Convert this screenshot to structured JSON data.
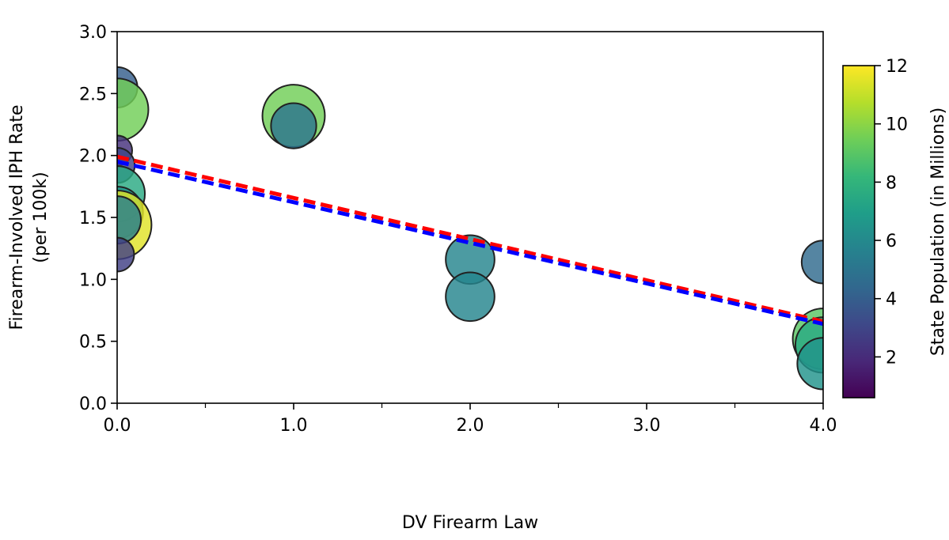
{
  "chart_data": {
    "type": "scatter",
    "xlabel": "DV Firearm Law",
    "ylabel": "Firearm-Involved IPH Rate",
    "ylabel_line2": "(per 100k)",
    "xlim": [
      0,
      4
    ],
    "ylim": [
      0,
      3
    ],
    "x_ticks": [
      {
        "value": 0,
        "label": "0.0"
      },
      {
        "value": 1,
        "label": "1.0"
      },
      {
        "value": 2,
        "label": "2.0"
      },
      {
        "value": 3,
        "label": "3.0"
      },
      {
        "value": 4,
        "label": "4.0"
      }
    ],
    "x_minor_ticks": [
      0.5,
      1.5,
      2.5,
      3.5
    ],
    "y_ticks": [
      {
        "value": 0.0,
        "label": "0.0"
      },
      {
        "value": 0.5,
        "label": "0.5"
      },
      {
        "value": 1.0,
        "label": "1.0"
      },
      {
        "value": 1.5,
        "label": "1.5"
      },
      {
        "value": 2.0,
        "label": "2.0"
      },
      {
        "value": 2.5,
        "label": "2.5"
      },
      {
        "value": 3.0,
        "label": "3.0"
      }
    ],
    "grid": false,
    "points": [
      {
        "x": 0,
        "y": 2.55,
        "population": 4.0
      },
      {
        "x": 0,
        "y": 2.37,
        "population": 9.5
      },
      {
        "x": 0,
        "y": 2.04,
        "population": 2.2
      },
      {
        "x": 0,
        "y": 1.92,
        "population": 3.0
      },
      {
        "x": 0,
        "y": 1.69,
        "population": 7.5
      },
      {
        "x": 0,
        "y": 1.54,
        "population": 6.5
      },
      {
        "x": 0,
        "y": 1.44,
        "population": 11.5
      },
      {
        "x": 0,
        "y": 1.48,
        "population": 5.5
      },
      {
        "x": 0,
        "y": 1.2,
        "population": 2.8
      },
      {
        "x": 1,
        "y": 2.32,
        "population": 9.5
      },
      {
        "x": 1,
        "y": 2.24,
        "population": 5.0
      },
      {
        "x": 2,
        "y": 1.16,
        "population": 5.8
      },
      {
        "x": 2,
        "y": 0.86,
        "population": 5.8
      },
      {
        "x": 4,
        "y": 1.14,
        "population": 4.5
      },
      {
        "x": 4,
        "y": 0.52,
        "population": 9.0
      },
      {
        "x": 4,
        "y": 0.47,
        "population": 7.5
      },
      {
        "x": 4,
        "y": 0.32,
        "population": 6.5
      }
    ],
    "fit_lines": [
      {
        "color": "#ff0000",
        "style": "dashed",
        "x": [
          0,
          4
        ],
        "y": [
          1.99,
          0.66
        ]
      },
      {
        "color": "#0000ff",
        "style": "dashed",
        "x": [
          0,
          4
        ],
        "y": [
          1.95,
          0.64
        ]
      }
    ],
    "colorbar": {
      "label": "State Population (in Millions)",
      "min": 0.6,
      "max": 12,
      "ticks": [
        {
          "value": 2,
          "label": "2"
        },
        {
          "value": 4,
          "label": "4"
        },
        {
          "value": 6,
          "label": "6"
        },
        {
          "value": 8,
          "label": "8"
        },
        {
          "value": 10,
          "label": "10"
        },
        {
          "value": 12,
          "label": "12"
        }
      ],
      "colormap": "viridis",
      "colormap_stops": [
        "#440154",
        "#482878",
        "#3e4989",
        "#31688e",
        "#26828e",
        "#1f9e89",
        "#35b779",
        "#6ece58",
        "#b5de2b",
        "#fde725"
      ]
    }
  }
}
